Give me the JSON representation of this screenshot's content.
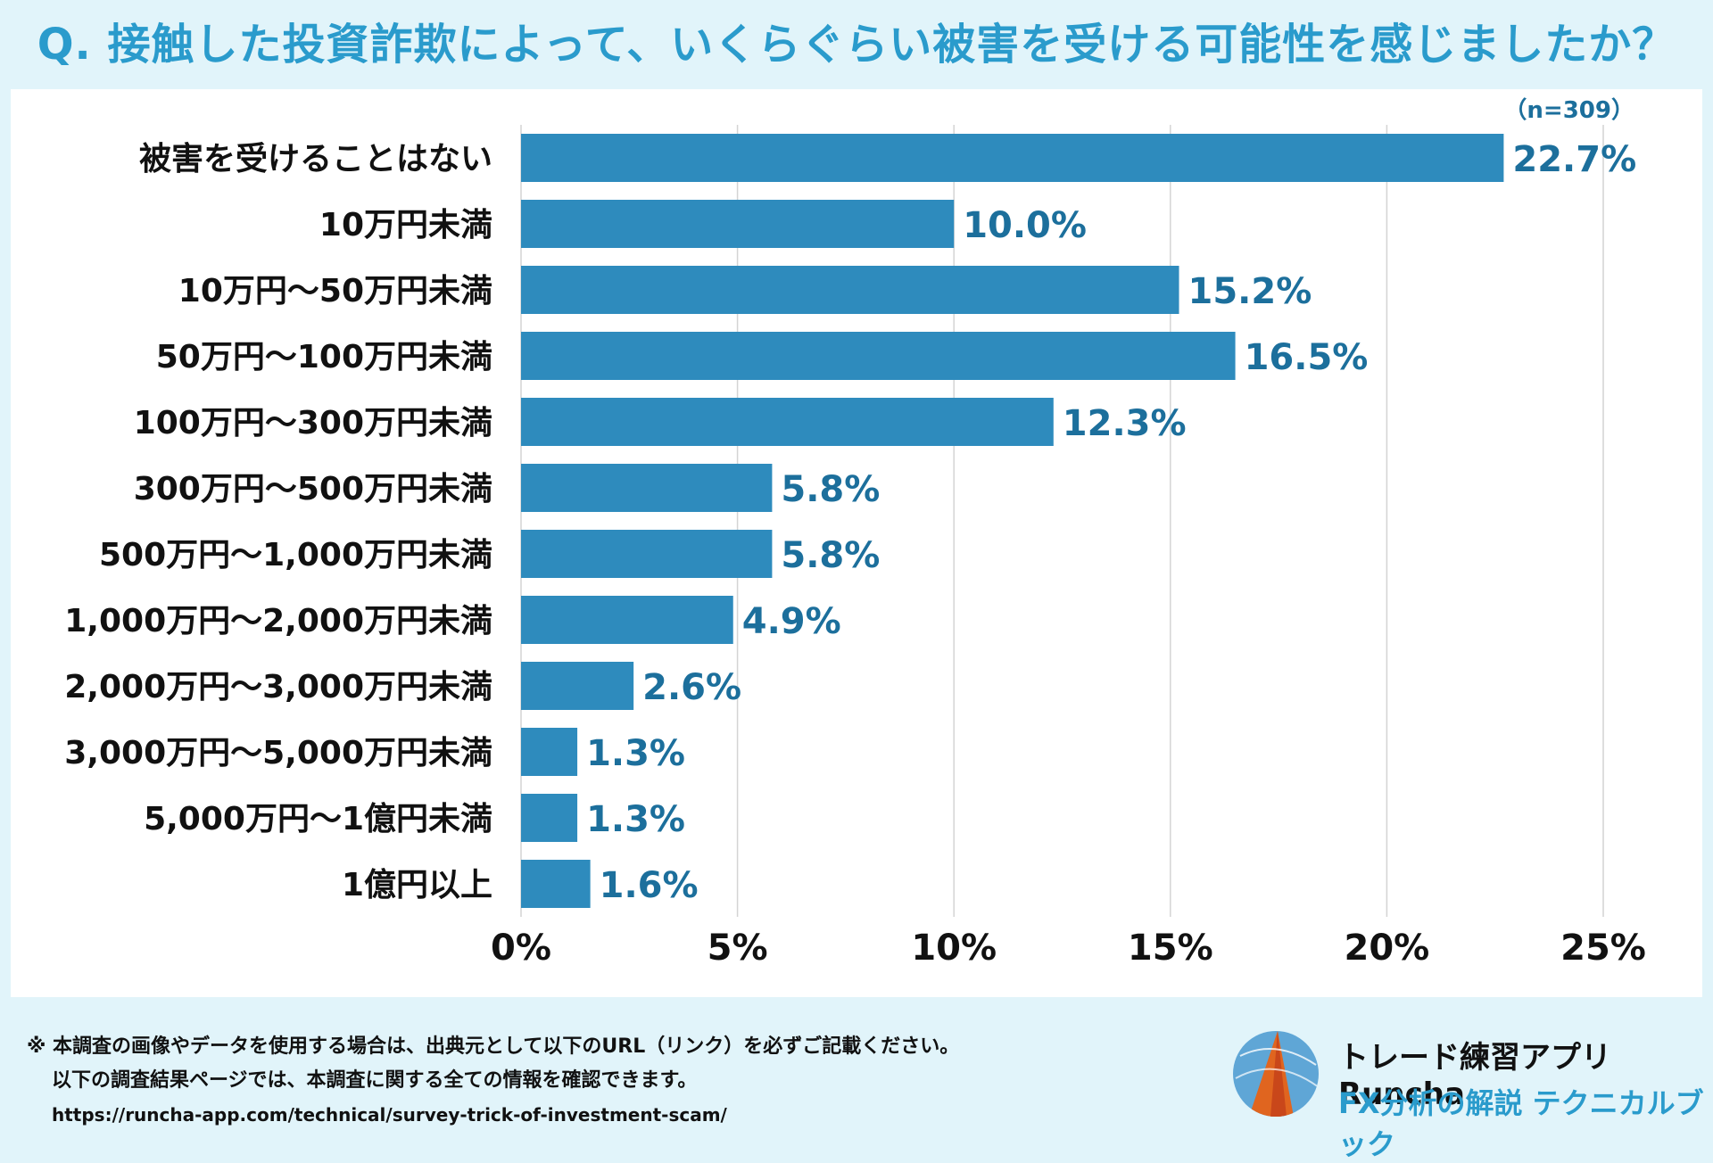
{
  "title": "Q. 接触した投資詐欺によって、いくらぐらい被害を受ける可能性を感じましたか？",
  "chart_data": {
    "type": "bar",
    "orientation": "horizontal",
    "sample_size": "（n=309）",
    "categories": [
      "被害を受けることはない",
      "10万円未満",
      "10万円～50万円未満",
      "50万円～100万円未満",
      "100万円～300万円未満",
      "300万円～500万円未満",
      "500万円～1,000万円未満",
      "1,000万円～2,000万円未満",
      "2,000万円～3,000万円未満",
      "3,000万円～5,000万円未満",
      "5,000万円～1億円未満",
      "1億円以上"
    ],
    "values": [
      22.7,
      10.0,
      15.2,
      16.5,
      12.3,
      5.8,
      5.8,
      4.9,
      2.6,
      1.3,
      1.3,
      1.6
    ],
    "value_labels": [
      "22.7%",
      "10.0%",
      "15.2%",
      "16.5%",
      "12.3%",
      "5.8%",
      "5.8%",
      "4.9%",
      "2.6%",
      "1.3%",
      "1.3%",
      "1.6%"
    ],
    "xlim": [
      0,
      25
    ],
    "xticks": [
      0,
      5,
      10,
      15,
      20,
      25
    ],
    "xtick_labels": [
      "0%",
      "5%",
      "10%",
      "15%",
      "20%",
      "25%"
    ],
    "grid": true,
    "bar_color": "#2e8bbd",
    "label_color": "#1c6f9c"
  },
  "footer": {
    "note_line1": "※ 本調査の画像やデータを使用する場合は、出典元として以下のURL（リンク）を必ずご記載ください。",
    "note_line2": "以下の調査結果ページでは、本調査に関する全ての情報を確認できます。",
    "url": "https://runcha-app.com/technical/survey-trick-of-investment-scam/"
  },
  "brand": {
    "name": "トレード練習アプリ  Runcha",
    "tagline": "FX分析の解説  テクニカルブック"
  },
  "colors": {
    "background": "#e1f4fa",
    "accent": "#2a9bcc"
  }
}
